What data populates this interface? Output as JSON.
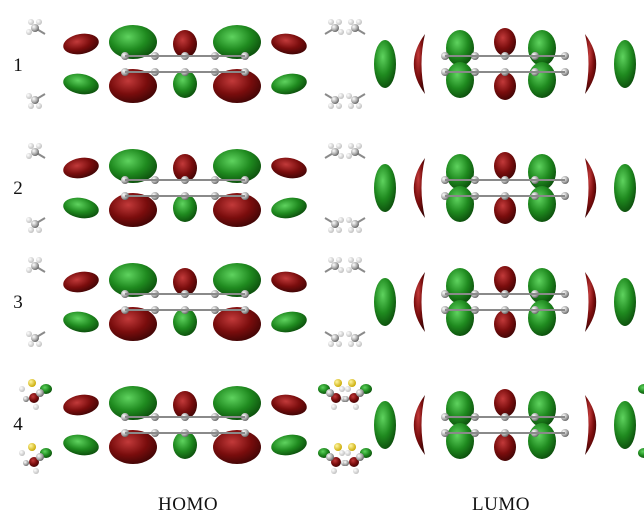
{
  "rows": [
    {
      "label": "1"
    },
    {
      "label": "2"
    },
    {
      "label": "3"
    },
    {
      "label": "4"
    }
  ],
  "columns": [
    {
      "label": "HOMO"
    },
    {
      "label": "LUMO"
    }
  ],
  "colors": {
    "lobe_red": "#7a0d0d",
    "lobe_green": "#1f8a1f",
    "atom_grey": "#a9a9a9",
    "atom_white": "#eeeeee",
    "atom_yellow": "#e6c700",
    "atom_red": "#b31a1a"
  }
}
